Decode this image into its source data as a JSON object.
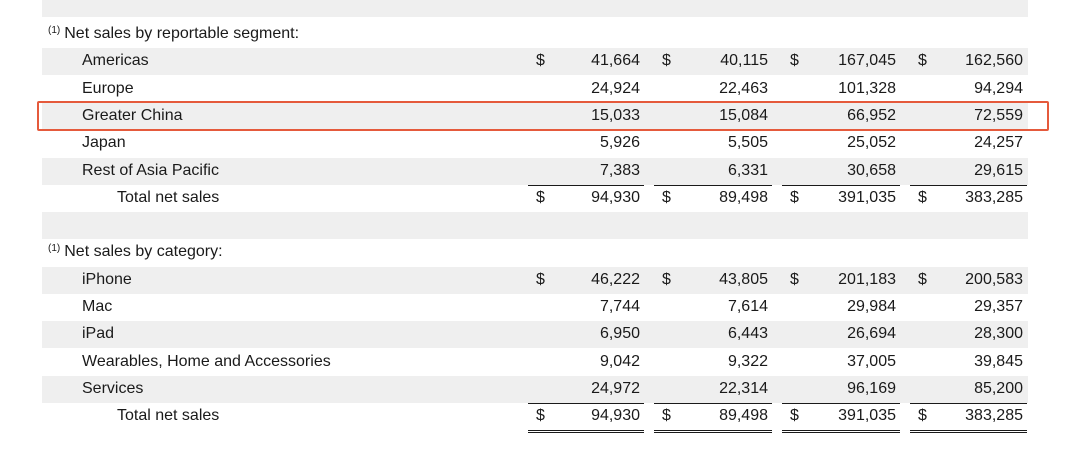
{
  "sections": [
    {
      "title": "Net sales by reportable segment:",
      "footnote": "(1)",
      "rows": [
        {
          "label": "Americas",
          "values": [
            "41,664",
            "40,115",
            "167,045",
            "162,560"
          ],
          "show_dollar": true,
          "total": false
        },
        {
          "label": "Europe",
          "values": [
            "24,924",
            "22,463",
            "101,328",
            "94,294"
          ],
          "show_dollar": false,
          "total": false
        },
        {
          "label": "Greater China",
          "values": [
            "15,033",
            "15,084",
            "66,952",
            "72,559"
          ],
          "show_dollar": false,
          "total": false,
          "highlighted": true
        },
        {
          "label": "Japan",
          "values": [
            "5,926",
            "5,505",
            "25,052",
            "24,257"
          ],
          "show_dollar": false,
          "total": false
        },
        {
          "label": "Rest of Asia Pacific",
          "values": [
            "7,383",
            "6,331",
            "30,658",
            "29,615"
          ],
          "show_dollar": false,
          "total": false
        },
        {
          "label": "Total net sales",
          "values": [
            "94,930",
            "89,498",
            "391,035",
            "383,285"
          ],
          "show_dollar": true,
          "total": true
        }
      ]
    },
    {
      "title": "Net sales by category:",
      "footnote": "(1)",
      "rows": [
        {
          "label": "iPhone",
          "values": [
            "46,222",
            "43,805",
            "201,183",
            "200,583"
          ],
          "show_dollar": true,
          "total": false
        },
        {
          "label": "Mac",
          "values": [
            "7,744",
            "7,614",
            "29,984",
            "29,357"
          ],
          "show_dollar": false,
          "total": false
        },
        {
          "label": "iPad",
          "values": [
            "6,950",
            "6,443",
            "26,694",
            "28,300"
          ],
          "show_dollar": false,
          "total": false
        },
        {
          "label": "Wearables, Home and Accessories",
          "values": [
            "9,042",
            "9,322",
            "37,005",
            "39,845"
          ],
          "show_dollar": false,
          "total": false
        },
        {
          "label": "Services",
          "values": [
            "24,972",
            "22,314",
            "96,169",
            "85,200"
          ],
          "show_dollar": false,
          "total": false
        },
        {
          "label": "Total net sales",
          "values": [
            "94,930",
            "89,498",
            "391,035",
            "383,285"
          ],
          "show_dollar": true,
          "total": true
        }
      ]
    }
  ],
  "currency_symbol": "$",
  "highlight_color": "#e55a3c",
  "shade_color": "#efefef"
}
